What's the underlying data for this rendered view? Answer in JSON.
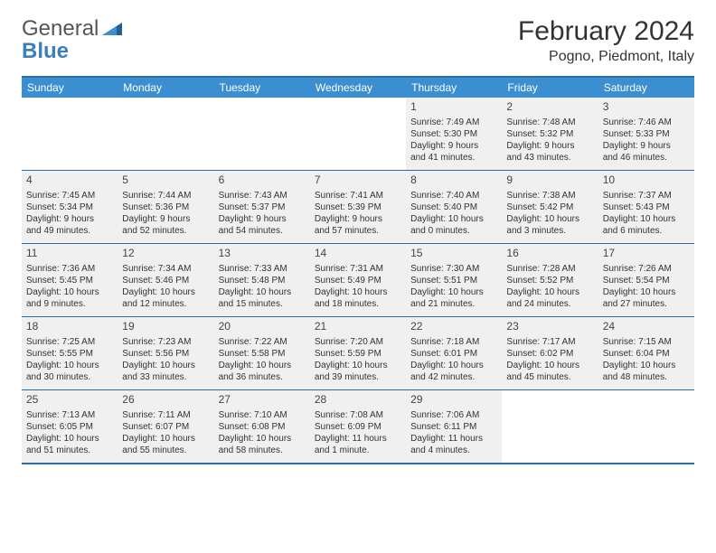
{
  "logo": {
    "text1": "General",
    "text2": "Blue"
  },
  "title": "February 2024",
  "location": "Pogno, Piedmont, Italy",
  "colors": {
    "header_bar": "#3b8fd1",
    "rule": "#2c6fa8",
    "cell_bg": "#f0f0f0",
    "text": "#333333",
    "logo_blue": "#3b7fbf"
  },
  "dayNames": [
    "Sunday",
    "Monday",
    "Tuesday",
    "Wednesday",
    "Thursday",
    "Friday",
    "Saturday"
  ],
  "weeks": [
    [
      {
        "blank": true
      },
      {
        "blank": true
      },
      {
        "blank": true
      },
      {
        "blank": true
      },
      {
        "num": "1",
        "sunrise": "Sunrise: 7:49 AM",
        "sunset": "Sunset: 5:30 PM",
        "day1": "Daylight: 9 hours",
        "day2": "and 41 minutes."
      },
      {
        "num": "2",
        "sunrise": "Sunrise: 7:48 AM",
        "sunset": "Sunset: 5:32 PM",
        "day1": "Daylight: 9 hours",
        "day2": "and 43 minutes."
      },
      {
        "num": "3",
        "sunrise": "Sunrise: 7:46 AM",
        "sunset": "Sunset: 5:33 PM",
        "day1": "Daylight: 9 hours",
        "day2": "and 46 minutes."
      }
    ],
    [
      {
        "num": "4",
        "sunrise": "Sunrise: 7:45 AM",
        "sunset": "Sunset: 5:34 PM",
        "day1": "Daylight: 9 hours",
        "day2": "and 49 minutes."
      },
      {
        "num": "5",
        "sunrise": "Sunrise: 7:44 AM",
        "sunset": "Sunset: 5:36 PM",
        "day1": "Daylight: 9 hours",
        "day2": "and 52 minutes."
      },
      {
        "num": "6",
        "sunrise": "Sunrise: 7:43 AM",
        "sunset": "Sunset: 5:37 PM",
        "day1": "Daylight: 9 hours",
        "day2": "and 54 minutes."
      },
      {
        "num": "7",
        "sunrise": "Sunrise: 7:41 AM",
        "sunset": "Sunset: 5:39 PM",
        "day1": "Daylight: 9 hours",
        "day2": "and 57 minutes."
      },
      {
        "num": "8",
        "sunrise": "Sunrise: 7:40 AM",
        "sunset": "Sunset: 5:40 PM",
        "day1": "Daylight: 10 hours",
        "day2": "and 0 minutes."
      },
      {
        "num": "9",
        "sunrise": "Sunrise: 7:38 AM",
        "sunset": "Sunset: 5:42 PM",
        "day1": "Daylight: 10 hours",
        "day2": "and 3 minutes."
      },
      {
        "num": "10",
        "sunrise": "Sunrise: 7:37 AM",
        "sunset": "Sunset: 5:43 PM",
        "day1": "Daylight: 10 hours",
        "day2": "and 6 minutes."
      }
    ],
    [
      {
        "num": "11",
        "sunrise": "Sunrise: 7:36 AM",
        "sunset": "Sunset: 5:45 PM",
        "day1": "Daylight: 10 hours",
        "day2": "and 9 minutes."
      },
      {
        "num": "12",
        "sunrise": "Sunrise: 7:34 AM",
        "sunset": "Sunset: 5:46 PM",
        "day1": "Daylight: 10 hours",
        "day2": "and 12 minutes."
      },
      {
        "num": "13",
        "sunrise": "Sunrise: 7:33 AM",
        "sunset": "Sunset: 5:48 PM",
        "day1": "Daylight: 10 hours",
        "day2": "and 15 minutes."
      },
      {
        "num": "14",
        "sunrise": "Sunrise: 7:31 AM",
        "sunset": "Sunset: 5:49 PM",
        "day1": "Daylight: 10 hours",
        "day2": "and 18 minutes."
      },
      {
        "num": "15",
        "sunrise": "Sunrise: 7:30 AM",
        "sunset": "Sunset: 5:51 PM",
        "day1": "Daylight: 10 hours",
        "day2": "and 21 minutes."
      },
      {
        "num": "16",
        "sunrise": "Sunrise: 7:28 AM",
        "sunset": "Sunset: 5:52 PM",
        "day1": "Daylight: 10 hours",
        "day2": "and 24 minutes."
      },
      {
        "num": "17",
        "sunrise": "Sunrise: 7:26 AM",
        "sunset": "Sunset: 5:54 PM",
        "day1": "Daylight: 10 hours",
        "day2": "and 27 minutes."
      }
    ],
    [
      {
        "num": "18",
        "sunrise": "Sunrise: 7:25 AM",
        "sunset": "Sunset: 5:55 PM",
        "day1": "Daylight: 10 hours",
        "day2": "and 30 minutes."
      },
      {
        "num": "19",
        "sunrise": "Sunrise: 7:23 AM",
        "sunset": "Sunset: 5:56 PM",
        "day1": "Daylight: 10 hours",
        "day2": "and 33 minutes."
      },
      {
        "num": "20",
        "sunrise": "Sunrise: 7:22 AM",
        "sunset": "Sunset: 5:58 PM",
        "day1": "Daylight: 10 hours",
        "day2": "and 36 minutes."
      },
      {
        "num": "21",
        "sunrise": "Sunrise: 7:20 AM",
        "sunset": "Sunset: 5:59 PM",
        "day1": "Daylight: 10 hours",
        "day2": "and 39 minutes."
      },
      {
        "num": "22",
        "sunrise": "Sunrise: 7:18 AM",
        "sunset": "Sunset: 6:01 PM",
        "day1": "Daylight: 10 hours",
        "day2": "and 42 minutes."
      },
      {
        "num": "23",
        "sunrise": "Sunrise: 7:17 AM",
        "sunset": "Sunset: 6:02 PM",
        "day1": "Daylight: 10 hours",
        "day2": "and 45 minutes."
      },
      {
        "num": "24",
        "sunrise": "Sunrise: 7:15 AM",
        "sunset": "Sunset: 6:04 PM",
        "day1": "Daylight: 10 hours",
        "day2": "and 48 minutes."
      }
    ],
    [
      {
        "num": "25",
        "sunrise": "Sunrise: 7:13 AM",
        "sunset": "Sunset: 6:05 PM",
        "day1": "Daylight: 10 hours",
        "day2": "and 51 minutes."
      },
      {
        "num": "26",
        "sunrise": "Sunrise: 7:11 AM",
        "sunset": "Sunset: 6:07 PM",
        "day1": "Daylight: 10 hours",
        "day2": "and 55 minutes."
      },
      {
        "num": "27",
        "sunrise": "Sunrise: 7:10 AM",
        "sunset": "Sunset: 6:08 PM",
        "day1": "Daylight: 10 hours",
        "day2": "and 58 minutes."
      },
      {
        "num": "28",
        "sunrise": "Sunrise: 7:08 AM",
        "sunset": "Sunset: 6:09 PM",
        "day1": "Daylight: 11 hours",
        "day2": "and 1 minute."
      },
      {
        "num": "29",
        "sunrise": "Sunrise: 7:06 AM",
        "sunset": "Sunset: 6:11 PM",
        "day1": "Daylight: 11 hours",
        "day2": "and 4 minutes."
      },
      {
        "blank": true
      },
      {
        "blank": true
      }
    ]
  ]
}
